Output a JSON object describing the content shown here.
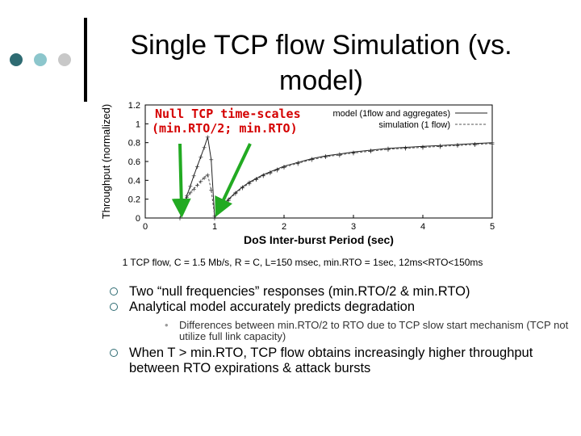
{
  "slide": {
    "title": "Single TCP flow Simulation (vs. model)",
    "dot_colors": [
      "#2e6b72",
      "#8cc6cc",
      "#c8c8c8"
    ],
    "caption": "1 TCP flow, C = 1.5 Mb/s, R = C, L=150 msec, min.RTO = 1sec, 12ms<RTO<150ms",
    "bullets": [
      {
        "level": 1,
        "text": "Two “null frequencies” responses (min.RTO/2 & min.RTO)"
      },
      {
        "level": 1,
        "text": "Analytical model accurately predicts degradation"
      },
      {
        "level": 2,
        "text": "Differences between min.RTO/2 to RTO due to TCP slow start mechanism (TCP not utilize full link capacity)"
      },
      {
        "level": 1,
        "text": "When T > min.RTO, TCP flow obtains increasingly higher throughput between RTO expirations & attack bursts"
      }
    ]
  },
  "chart_data": {
    "type": "line",
    "xlabel": "DoS Inter-burst Period (sec)",
    "ylabel": "Throughput (normalized)",
    "xlim": [
      0,
      5
    ],
    "ylim": [
      0,
      1.2
    ],
    "xticks": [
      0,
      1,
      2,
      3,
      4,
      5
    ],
    "yticks": [
      0,
      0.2,
      0.4,
      0.6,
      0.8,
      1,
      1.2
    ],
    "annotation": [
      "Null TCP time-scales",
      "(min.RTO/2; min.RTO)"
    ],
    "annotation_color": "#d40000",
    "arrow_color": "#22aa22",
    "arrow_targets_x": [
      0.5,
      1.0
    ],
    "series": [
      {
        "name": "model (1flow and aggregates)",
        "style": "solid",
        "x": [
          0.5,
          0.55,
          0.6,
          0.65,
          0.7,
          0.75,
          0.8,
          0.85,
          0.9,
          0.95,
          1.0,
          1.05,
          1.1,
          1.2,
          1.3,
          1.4,
          1.5,
          1.6,
          1.7,
          1.8,
          1.9,
          2.0,
          2.2,
          2.4,
          2.6,
          2.8,
          3.0,
          3.25,
          3.5,
          3.75,
          4.0,
          4.25,
          4.5,
          4.75,
          5.0
        ],
        "y": [
          0.0,
          0.12,
          0.24,
          0.34,
          0.45,
          0.55,
          0.65,
          0.75,
          0.86,
          0.62,
          0.0,
          0.07,
          0.12,
          0.2,
          0.27,
          0.33,
          0.38,
          0.42,
          0.46,
          0.49,
          0.52,
          0.55,
          0.59,
          0.63,
          0.66,
          0.68,
          0.7,
          0.72,
          0.74,
          0.75,
          0.76,
          0.77,
          0.78,
          0.79,
          0.8
        ]
      },
      {
        "name": "simulation (1 flow)",
        "style": "dashed",
        "x": [
          0.5,
          0.55,
          0.6,
          0.65,
          0.7,
          0.75,
          0.8,
          0.85,
          0.9,
          0.95,
          1.0,
          1.05,
          1.1,
          1.2,
          1.3,
          1.4,
          1.5,
          1.6,
          1.7,
          1.8,
          1.9,
          2.0,
          2.2,
          2.4,
          2.6,
          2.8,
          3.0,
          3.25,
          3.5,
          3.75,
          4.0,
          4.25,
          4.5,
          4.75,
          5.0
        ],
        "y": [
          0.1,
          0.16,
          0.22,
          0.27,
          0.31,
          0.35,
          0.39,
          0.43,
          0.46,
          0.3,
          0.02,
          0.06,
          0.11,
          0.19,
          0.26,
          0.32,
          0.37,
          0.41,
          0.45,
          0.48,
          0.51,
          0.54,
          0.58,
          0.62,
          0.65,
          0.67,
          0.69,
          0.71,
          0.73,
          0.74,
          0.75,
          0.76,
          0.77,
          0.78,
          0.79
        ]
      }
    ]
  }
}
